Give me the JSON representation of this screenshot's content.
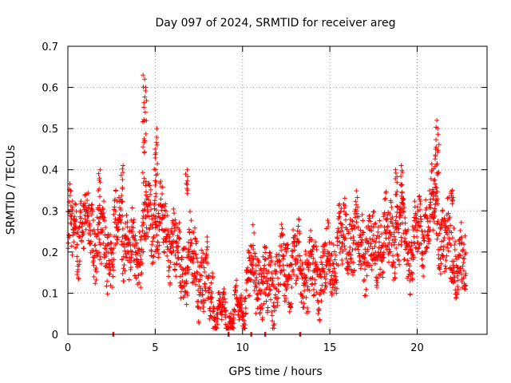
{
  "chart_data": {
    "type": "scatter",
    "title": "Day 097 of 2024, SRMTID for receiver areg",
    "xlabel": "GPS time / hours",
    "ylabel": "SRMTID / TECUs",
    "xlim": [
      0,
      24
    ],
    "ylim": [
      0,
      0.7
    ],
    "x_ticks": [
      0,
      5,
      10,
      15,
      20
    ],
    "x_tick_labels": [
      "0",
      "5",
      "10",
      "15",
      "20"
    ],
    "y_ticks": [
      0,
      0.1,
      0.2,
      0.3,
      0.4,
      0.5,
      0.6,
      0.7
    ],
    "y_tick_labels": [
      "0",
      "0.1",
      "0.2",
      "0.3",
      "0.4",
      "0.5",
      "0.6",
      "0.7"
    ],
    "grid": true,
    "marker": "+",
    "color": "#ff0000",
    "series": [
      {
        "name": "SRMTID",
        "trend": [
          [
            0.0,
            0.25
          ],
          [
            0.5,
            0.25
          ],
          [
            1.0,
            0.27
          ],
          [
            1.5,
            0.24
          ],
          [
            2.0,
            0.22
          ],
          [
            2.5,
            0.2
          ],
          [
            3.0,
            0.27
          ],
          [
            3.5,
            0.2
          ],
          [
            4.0,
            0.2
          ],
          [
            4.5,
            0.27
          ],
          [
            5.0,
            0.28
          ],
          [
            5.5,
            0.26
          ],
          [
            6.0,
            0.22
          ],
          [
            6.5,
            0.17
          ],
          [
            7.0,
            0.18
          ],
          [
            7.5,
            0.15
          ],
          [
            8.0,
            0.12
          ],
          [
            8.5,
            0.06
          ],
          [
            9.0,
            0.04
          ],
          [
            9.5,
            0.05
          ],
          [
            10.0,
            0.06
          ],
          [
            10.5,
            0.15
          ],
          [
            11.0,
            0.14
          ],
          [
            11.5,
            0.1
          ],
          [
            12.0,
            0.14
          ],
          [
            12.5,
            0.16
          ],
          [
            13.0,
            0.17
          ],
          [
            13.5,
            0.16
          ],
          [
            14.0,
            0.14
          ],
          [
            14.5,
            0.15
          ],
          [
            15.0,
            0.17
          ],
          [
            15.5,
            0.22
          ],
          [
            16.0,
            0.23
          ],
          [
            16.5,
            0.23
          ],
          [
            17.0,
            0.22
          ],
          [
            17.5,
            0.2
          ],
          [
            18.0,
            0.24
          ],
          [
            18.5,
            0.23
          ],
          [
            19.0,
            0.25
          ],
          [
            19.5,
            0.2
          ],
          [
            20.0,
            0.23
          ],
          [
            20.5,
            0.27
          ],
          [
            21.0,
            0.3
          ],
          [
            21.5,
            0.22
          ],
          [
            22.0,
            0.21
          ],
          [
            22.5,
            0.17
          ],
          [
            22.8,
            0.13
          ]
        ],
        "peaks": [
          [
            4.35,
            0.63
          ],
          [
            4.4,
            0.6
          ],
          [
            4.45,
            0.62
          ],
          [
            5.0,
            0.45
          ],
          [
            5.1,
            0.5
          ],
          [
            3.1,
            0.41
          ],
          [
            1.8,
            0.4
          ],
          [
            6.8,
            0.4
          ],
          [
            19.1,
            0.41
          ],
          [
            18.8,
            0.4
          ],
          [
            21.0,
            0.45
          ],
          [
            21.1,
            0.52
          ],
          [
            21.2,
            0.5
          ],
          [
            22.0,
            0.35
          ]
        ],
        "zero_points": [
          2.6,
          9.2,
          10.5,
          11.3,
          13.3
        ]
      }
    ]
  }
}
